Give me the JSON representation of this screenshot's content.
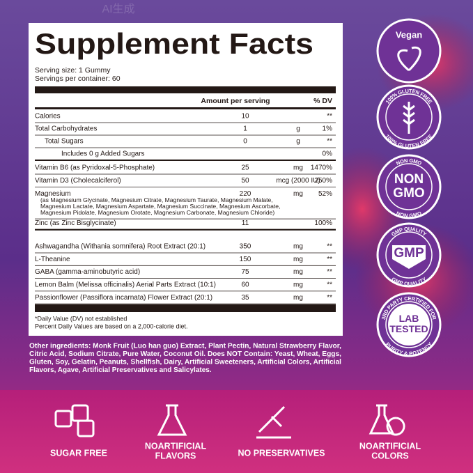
{
  "watermark": "AI生成",
  "facts": {
    "title": "Supplement Facts",
    "serving_size": "Serving size: 1 Gummy",
    "servings_per_container": "Servings per container: 60",
    "header": {
      "amount": "Amount per serving",
      "dv": "% DV"
    },
    "sections": [
      [
        {
          "name": "Calories",
          "amount": "10",
          "dv": "**"
        },
        {
          "name": "Total Carbohydrates",
          "amount": "1",
          "unit": "g",
          "dv": "1%",
          "sub": [
            {
              "name": "Total Sugars",
              "amount": "0",
              "unit": "g",
              "dv": "**",
              "sub": [
                {
                  "name": "Includes 0 g Added Sugars",
                  "dv": "0%"
                }
              ]
            }
          ]
        }
      ],
      [
        {
          "name": "Vitamin B6 (as Pyridoxal-5-Phosphate)",
          "amount": "25",
          "unit": "mg",
          "dv": "1470%"
        },
        {
          "name": "Vitamin D3 (Cholecalciferol)",
          "amount": "50",
          "unit": "mcg (2000 IU)",
          "dv": "250%"
        },
        {
          "name": "Magnesium",
          "amount": "220",
          "unit": "mg",
          "dv": "52%",
          "note": [
            "(as Magnesium Glycinate, Magnesium Citrate, Magnesium Taurate, Magnesium Malate,",
            "Magnesium Lactate, Magnesium Aspartate, Magnesium Succinate, Magnesium Ascorbate,",
            "Magnesium Pidolate, Magnesium Orotate, Magnesium Carbonate, Magnesium Chloride)"
          ]
        },
        {
          "name": "Zinc (as Zinc Bisglycinate)",
          "amount": "11",
          "dv": "100%"
        }
      ],
      [
        {
          "name": "Ashwagandha (Withania somnifera) Root Extract (20:1)",
          "amount": "350",
          "unit": "mg",
          "dv": "**"
        },
        {
          "name": "L-Theanine",
          "amount": "150",
          "unit": "mg",
          "dv": "**"
        },
        {
          "name": "GABA (gamma-aminobutyric acid)",
          "amount": "75",
          "unit": "mg",
          "dv": "**"
        },
        {
          "name": "Lemon Balm (Melissa officinalis) Aerial Parts Extract (10:1)",
          "amount": "60",
          "unit": "mg",
          "dv": "**"
        },
        {
          "name": "Passionflower (Passiflora incarnata) Flower Extract (20:1)",
          "amount": "35",
          "unit": "mg",
          "dv": "**"
        }
      ]
    ],
    "footnotes": [
      "*Daily Value (DV) not established",
      "Percent Daily Values are based on a 2,000-calorie diet."
    ]
  },
  "other_ingredients": [
    "Other ingredients: Monk Fruit (Luo han guo) Extract, Plant Pectin, Natural Strawberry Flavor,",
    "Citric Acid, Sodium Citrate, Pure Water, Coconut Oil. Does NOT Contain: Yeast, Wheat, Eggs,",
    "Gluten, Soy, Gelatin, Peanuts, Shellfish, Dairy, Artificial Sweeteners, Artificial Colors, Artificial",
    "Flavors, Agave, Artificial Preservatives and Salicylates."
  ],
  "badges": [
    {
      "label": [
        "Vegan"
      ]
    },
    {
      "ring_top": "100% GLUTEN FREE",
      "ring_bottom": "100% GLUTEN FREE"
    },
    {
      "ring_top": "NON GMO",
      "label": [
        "NON",
        "GMO"
      ],
      "ring_bottom": "NON GMO"
    },
    {
      "ring_top": "GMP QUALITY",
      "label": [
        "GMP"
      ],
      "ring_bottom": "GMP QUALITY"
    },
    {
      "ring_top": "3RD PARTY CERTIFIED FOR",
      "label": [
        "LAB",
        "TESTED"
      ],
      "ring_bottom": "PURITY & POTENCY"
    }
  ],
  "features": [
    {
      "label": [
        "SUGAR FREE"
      ]
    },
    {
      "label": [
        "NOARTIFICIAL",
        "FLAVORS"
      ]
    },
    {
      "label": [
        "NO PRESERVATIVES"
      ]
    },
    {
      "label": [
        "NOARTIFICIAL",
        "COLORS"
      ]
    }
  ]
}
